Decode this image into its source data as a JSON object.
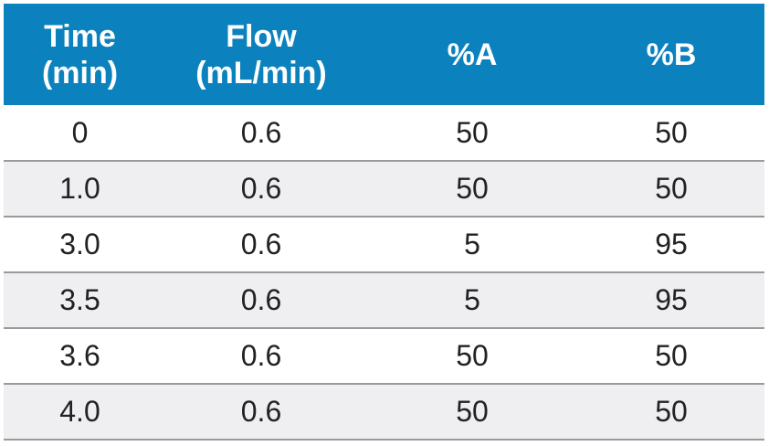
{
  "table": {
    "header_color": "#0b82be",
    "row_shade_color": "#efeef0",
    "headers": [
      {
        "line1": "Time",
        "line2": "(min)"
      },
      {
        "line1": "Flow",
        "line2": "(mL/min)"
      },
      {
        "line1": "%A",
        "line2": ""
      },
      {
        "line1": "%B",
        "line2": ""
      }
    ],
    "rows": [
      [
        "0",
        "0.6",
        "50",
        "50"
      ],
      [
        "1.0",
        "0.6",
        "50",
        "50"
      ],
      [
        "3.0",
        "0.6",
        "5",
        "95"
      ],
      [
        "3.5",
        "0.6",
        "5",
        "95"
      ],
      [
        "3.6",
        "0.6",
        "50",
        "50"
      ],
      [
        "4.0",
        "0.6",
        "50",
        "50"
      ]
    ]
  }
}
